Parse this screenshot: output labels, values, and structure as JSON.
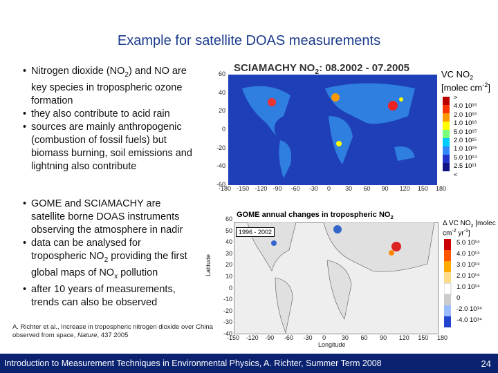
{
  "title": "Example for satellite DOAS measurements",
  "bullets1": [
    [
      "Nitrogen dioxide (NO",
      {
        "sub": "2"
      },
      ") and NO are key species in tropospheric ozone formation"
    ],
    [
      "they also contribute to acid rain"
    ],
    [
      "sources are mainly anthropogenic (combustion of fossil fuels) but biomass burning, soil emissions and lightning also contribute"
    ]
  ],
  "bullets2": [
    [
      "GOME and SCIAMACHY are satellite borne DOAS instruments observing the atmosphere in nadir"
    ],
    [
      "data can be analysed for tropospheric NO",
      {
        "sub": "2"
      },
      " providing the first global maps of NO",
      {
        "sub": "x"
      },
      " pollution"
    ],
    [
      "after 10 years of measurements, trends can also be observed"
    ]
  ],
  "citation": [
    "A. Richter et al., Increase in tropospheric nitrogen dioxide over China observed from space, ",
    {
      "i": "Nature"
    },
    ", 437 2005"
  ],
  "map1": {
    "title": [
      "SCIAMACHY NO",
      {
        "sub": "2"
      },
      ": 08.2002 - 07.2005"
    ],
    "yticks": [
      60,
      40,
      20,
      0,
      -20,
      -40,
      -60
    ],
    "xticks": [
      -180,
      -150,
      -120,
      -90,
      -60,
      -30,
      0,
      30,
      60,
      90,
      120,
      150,
      180
    ],
    "legend_title": [
      "VC NO",
      {
        "sub": "2"
      },
      " [molec cm",
      {
        "sup": "-2"
      },
      "]"
    ],
    "legend_labels": [
      ">",
      "4.0 10¹⁶",
      "2.0 10¹⁶",
      "1.0 10¹⁶",
      "5.0 10¹⁵",
      "2.0 10¹⁵",
      "1.0 10¹⁵",
      "5.0 10¹⁴",
      "2.5 10¹¹",
      "<"
    ]
  },
  "map2": {
    "title": [
      "GOME annual changes in tropospheric  NO",
      {
        "sub": "2"
      }
    ],
    "period": "1996 - 2002",
    "yticks": [
      60,
      50,
      40,
      30,
      20,
      10,
      0,
      -10,
      -20,
      -30,
      -40
    ],
    "xticks": [
      -150,
      -120,
      -90,
      -60,
      -30,
      0,
      30,
      60,
      90,
      120,
      150,
      180
    ],
    "ylabel": "Latitude",
    "xlabel": "Longitude",
    "legend_title": [
      "Δ VC NO",
      {
        "sub": "2"
      },
      " [molec cm",
      {
        "sup": "-2"
      },
      " yr",
      {
        "sup": "-1"
      },
      "]"
    ],
    "legend_labels": [
      "5.0 10¹⁴",
      "4.0 10¹⁴",
      "3.0 10¹⁴",
      "2.0 10¹⁴",
      "1.0 10¹⁴",
      "0",
      "-2.0 10¹⁴",
      "-4.0 10¹⁴"
    ]
  },
  "footer": {
    "text": "Introduction to Measurement Techniques in Environmental Physics, A. Richter, Summer Term 2008",
    "page": "24"
  }
}
